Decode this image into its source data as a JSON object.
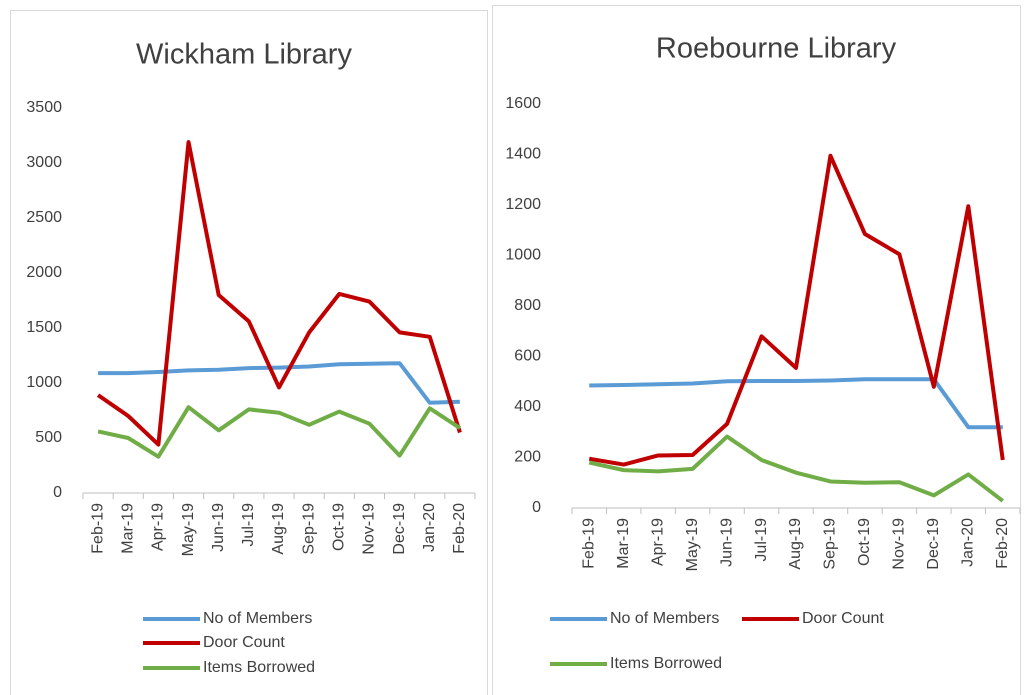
{
  "chart_data": [
    {
      "type": "line",
      "title": "Wickham Library",
      "categories": [
        "Feb-19",
        "Mar-19",
        "Apr-19",
        "May-19",
        "Jun-19",
        "Jul-19",
        "Aug-19",
        "Sep-19",
        "Oct-19",
        "Nov-19",
        "Dec-19",
        "Jan-20",
        "Feb-20"
      ],
      "series": [
        {
          "name": "No of Members",
          "color": "#5b9bd5",
          "values": [
            1090,
            1090,
            1100,
            1115,
            1120,
            1135,
            1140,
            1150,
            1170,
            1175,
            1180,
            820,
            830
          ]
        },
        {
          "name": "Door Count",
          "color": "#c00000",
          "values": [
            890,
            700,
            440,
            3190,
            1800,
            1560,
            960,
            1460,
            1810,
            1740,
            1460,
            1420,
            550
          ]
        },
        {
          "name": "Items Borrowed",
          "color": "#70ad47",
          "values": [
            560,
            500,
            330,
            780,
            570,
            760,
            730,
            620,
            740,
            630,
            340,
            770,
            590
          ]
        }
      ],
      "ylim": [
        0,
        3500
      ],
      "yticks": [
        0,
        500,
        1000,
        1500,
        2000,
        2500,
        3000,
        3500
      ],
      "legend": "bottom"
    },
    {
      "type": "line",
      "title": "Roebourne Library",
      "categories": [
        "Feb-19",
        "Mar-19",
        "Apr-19",
        "May-19",
        "Jun-19",
        "Jul-19",
        "Aug-19",
        "Sep-19",
        "Oct-19",
        "Nov-19",
        "Dec-19",
        "Jan-20",
        "Feb-20"
      ],
      "series": [
        {
          "name": "No of Members",
          "color": "#5b9bd5",
          "values": [
            485,
            487,
            490,
            493,
            502,
            503,
            503,
            505,
            510,
            510,
            510,
            320,
            320
          ]
        },
        {
          "name": "Door Count",
          "color": "#c00000",
          "values": [
            195,
            172,
            208,
            210,
            333,
            680,
            555,
            1395,
            1085,
            1005,
            480,
            1195,
            190
          ]
        },
        {
          "name": "Items Borrowed",
          "color": "#70ad47",
          "values": [
            180,
            150,
            145,
            155,
            283,
            190,
            140,
            105,
            100,
            102,
            50,
            133,
            28
          ]
        }
      ],
      "ylim": [
        0,
        1600
      ],
      "yticks": [
        0,
        200,
        400,
        600,
        800,
        1000,
        1200,
        1400,
        1600
      ],
      "legend": "bottom"
    }
  ]
}
